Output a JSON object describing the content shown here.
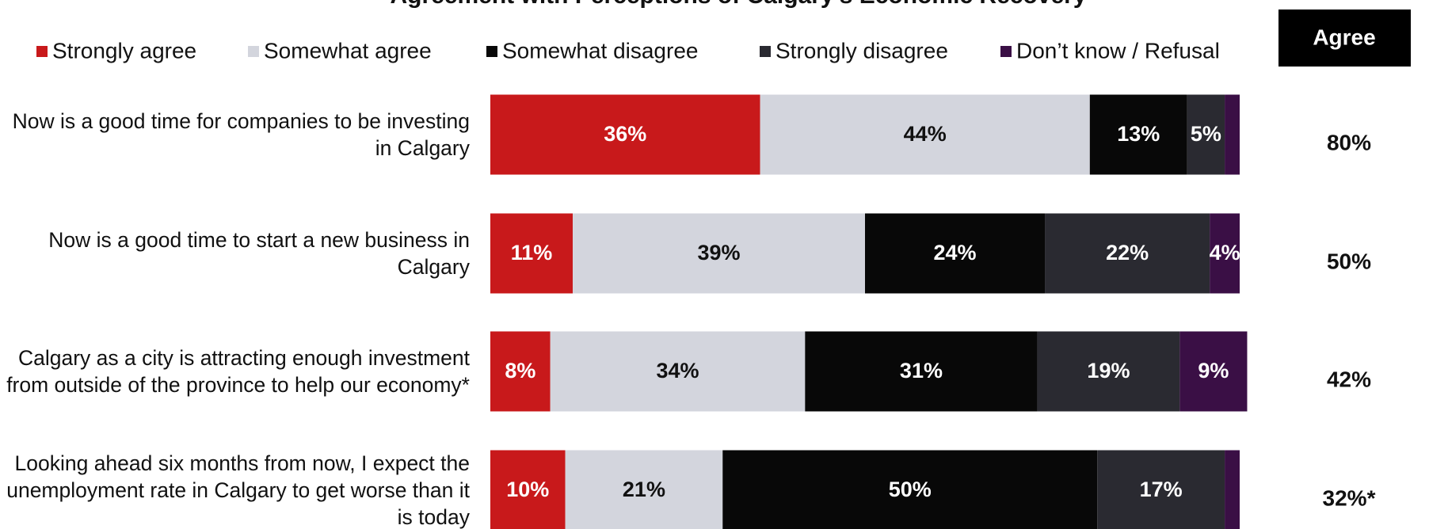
{
  "chart_data": {
    "type": "stacked-bar",
    "orientation": "horizontal",
    "title": "Agreement with Perceptions of Calgary's Economic Recovery",
    "categories": [
      "Now is a good time for companies to be investing in Calgary",
      "Now is a good time to start a new business in Calgary",
      "Calgary as a city is attracting enough investment from outside of the province to help our economy*",
      "Looking ahead six months from now, I expect the unemployment rate in Calgary to get worse than it is today"
    ],
    "xlim": [
      0,
      100
    ],
    "series": [
      {
        "name": "Strongly agree",
        "color": "#c8191b",
        "values": [
          36,
          11,
          8,
          10
        ],
        "value_labels": [
          "36%",
          "11%",
          "8%",
          "10%"
        ]
      },
      {
        "name": "Somewhat agree",
        "color": "#d3d5dd",
        "values": [
          44,
          39,
          34,
          21
        ],
        "value_labels": [
          "44%",
          "39%",
          "34%",
          "21%"
        ]
      },
      {
        "name": "Somewhat disagree",
        "color": "#080808",
        "values": [
          13,
          24,
          31,
          50
        ],
        "value_labels": [
          "13%",
          "24%",
          "31%",
          "50%"
        ]
      },
      {
        "name": "Strongly disagree",
        "color": "#2a2a31",
        "values": [
          5,
          22,
          19,
          17
        ],
        "value_labels": [
          "5%",
          "22%",
          "19%",
          "17%"
        ]
      },
      {
        "name": "Don’t know / Refusal",
        "color": "#3a0f45",
        "values": [
          2,
          4,
          9,
          2
        ],
        "value_labels": [
          null,
          "4%",
          "9%",
          null
        ]
      }
    ],
    "agree": {
      "title": "Agree",
      "values": [
        80,
        50,
        42,
        32
      ],
      "value_labels": [
        "80%",
        "50%",
        "42%",
        "32%*"
      ]
    }
  }
}
